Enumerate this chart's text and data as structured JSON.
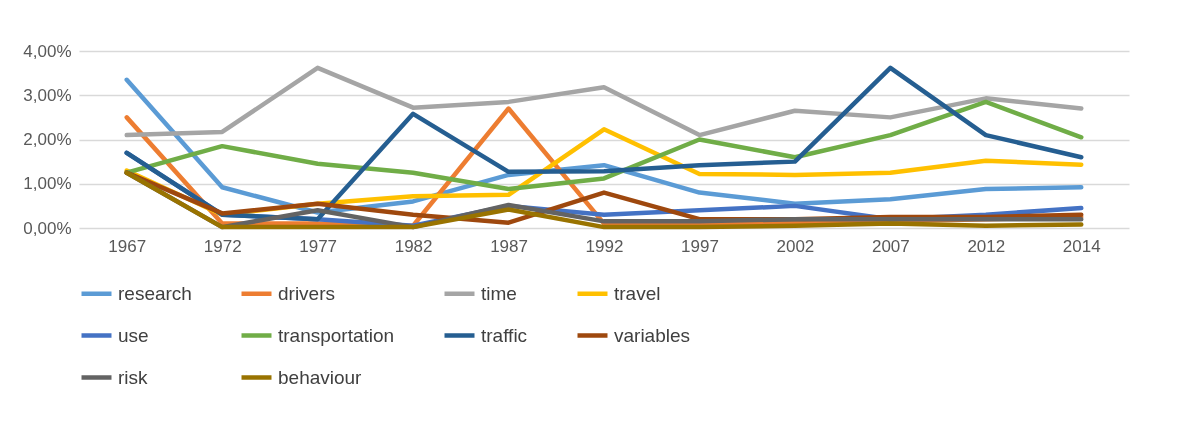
{
  "chart_data": {
    "type": "line",
    "categories": [
      "1967",
      "1972",
      "1977",
      "1982",
      "1987",
      "1992",
      "1997",
      "2002",
      "2007",
      "2012",
      "2014"
    ],
    "ylim": [
      0,
      4
    ],
    "yticks": [
      {
        "value": 0,
        "label": "0,00%"
      },
      {
        "value": 1,
        "label": "1,00%"
      },
      {
        "value": 2,
        "label": "2,00%"
      },
      {
        "value": 3,
        "label": "3,00%"
      },
      {
        "value": 4,
        "label": "4,00%"
      }
    ],
    "grid": "y",
    "legend": "bottom",
    "marker": "none",
    "line_style": "solid",
    "series": [
      {
        "name": "research",
        "color": "#5b9bd5",
        "values": [
          3.35,
          0.92,
          0.35,
          0.6,
          1.2,
          1.42,
          0.8,
          0.55,
          0.65,
          0.88,
          0.92
        ]
      },
      {
        "name": "drivers",
        "color": "#ed7d31",
        "values": [
          2.5,
          0.1,
          0.1,
          0.05,
          2.7,
          0.1,
          0.1,
          0.1,
          0.15,
          0.2,
          0.25
        ]
      },
      {
        "name": "time",
        "color": "#a5a5a5",
        "values": [
          2.1,
          2.17,
          3.62,
          2.72,
          2.85,
          3.18,
          2.1,
          2.65,
          2.5,
          2.93,
          2.7
        ]
      },
      {
        "name": "travel",
        "color": "#ffc000",
        "values": [
          1.3,
          0.3,
          0.55,
          0.72,
          0.75,
          2.23,
          1.22,
          1.2,
          1.25,
          1.52,
          1.43
        ]
      },
      {
        "name": "use",
        "color": "#4472c4",
        "values": [
          1.7,
          0.3,
          0.2,
          0.05,
          0.5,
          0.3,
          0.4,
          0.5,
          0.2,
          0.3,
          0.45
        ]
      },
      {
        "name": "transportation",
        "color": "#70ad47",
        "values": [
          1.25,
          1.85,
          1.45,
          1.25,
          0.88,
          1.12,
          2.0,
          1.6,
          2.1,
          2.85,
          2.05
        ]
      },
      {
        "name": "traffic",
        "color": "#255e91",
        "values": [
          1.7,
          0.3,
          0.2,
          2.58,
          1.27,
          1.28,
          1.42,
          1.5,
          3.62,
          2.1,
          1.6
        ]
      },
      {
        "name": "variables",
        "color": "#9e480e",
        "values": [
          1.25,
          0.33,
          0.55,
          0.3,
          0.12,
          0.8,
          0.2,
          0.2,
          0.25,
          0.25,
          0.3
        ]
      },
      {
        "name": "risk",
        "color": "#636363",
        "values": [
          1.25,
          0.02,
          0.4,
          0.02,
          0.52,
          0.15,
          0.15,
          0.2,
          0.2,
          0.2,
          0.2
        ]
      },
      {
        "name": "behaviour",
        "color": "#997300",
        "values": [
          1.25,
          0.02,
          0.02,
          0.02,
          0.42,
          0.02,
          0.02,
          0.05,
          0.1,
          0.05,
          0.08
        ]
      }
    ]
  }
}
